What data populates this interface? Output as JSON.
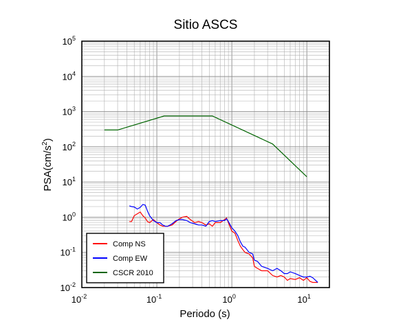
{
  "chart_data": {
    "type": "line",
    "title": "Sitio ASCS",
    "xlabel": "Periodo (s)",
    "ylabel_base": "PSA(cm/s",
    "ylabel_sup": "2",
    "ylabel_end": ")",
    "x_scale": "log",
    "y_scale": "log",
    "xlim": [
      0.01,
      20
    ],
    "ylim": [
      0.01,
      100000
    ],
    "grid": true,
    "legend_position": "bottom-left",
    "x_ticks": [
      {
        "base": "10",
        "exp": "-2",
        "value": 0.01
      },
      {
        "base": "10",
        "exp": "-1",
        "value": 0.1
      },
      {
        "base": "10",
        "exp": "0",
        "value": 1
      },
      {
        "base": "10",
        "exp": "1",
        "value": 10
      }
    ],
    "y_ticks": [
      {
        "base": "10",
        "exp": "-2",
        "value": 0.01
      },
      {
        "base": "10",
        "exp": "-1",
        "value": 0.1
      },
      {
        "base": "10",
        "exp": "0",
        "value": 1
      },
      {
        "base": "10",
        "exp": "1",
        "value": 10
      },
      {
        "base": "10",
        "exp": "2",
        "value": 100
      },
      {
        "base": "10",
        "exp": "3",
        "value": 1000
      },
      {
        "base": "10",
        "exp": "4",
        "value": 10000
      },
      {
        "base": "10",
        "exp": "5",
        "value": 100000
      }
    ],
    "series": [
      {
        "name": "Comp NS",
        "color": "#ff0000",
        "x": [
          0.043,
          0.046,
          0.05,
          0.055,
          0.06,
          0.065,
          0.07,
          0.075,
          0.08,
          0.09,
          0.1,
          0.11,
          0.12,
          0.13,
          0.14,
          0.16,
          0.18,
          0.2,
          0.22,
          0.25,
          0.28,
          0.32,
          0.36,
          0.4,
          0.45,
          0.5,
          0.55,
          0.6,
          0.7,
          0.8,
          0.85,
          0.9,
          1.0,
          1.1,
          1.2,
          1.3,
          1.4,
          1.5,
          1.7,
          1.9,
          2.0,
          2.2,
          2.5,
          3.0,
          3.5,
          4.0,
          4.5,
          5.0,
          5.5,
          6.0,
          7.0,
          8.0,
          9.0,
          10.0,
          11.0,
          12.0,
          14.0
        ],
        "y": [
          0.75,
          0.75,
          1.1,
          1.25,
          1.4,
          1.1,
          0.95,
          0.75,
          0.7,
          0.85,
          0.7,
          0.6,
          0.55,
          0.55,
          0.55,
          0.6,
          0.75,
          0.9,
          1.0,
          1.05,
          0.85,
          0.7,
          0.75,
          0.7,
          0.6,
          0.65,
          0.55,
          0.7,
          0.7,
          0.85,
          0.95,
          0.7,
          0.4,
          0.35,
          0.22,
          0.15,
          0.12,
          0.1,
          0.09,
          0.07,
          0.04,
          0.035,
          0.03,
          0.03,
          0.022,
          0.02,
          0.022,
          0.02,
          0.016,
          0.018,
          0.017,
          0.019,
          0.016,
          0.019,
          0.015,
          0.014,
          0.014
        ]
      },
      {
        "name": "Comp EW",
        "color": "#0000ff",
        "x": [
          0.043,
          0.046,
          0.05,
          0.055,
          0.06,
          0.065,
          0.07,
          0.075,
          0.08,
          0.09,
          0.1,
          0.11,
          0.12,
          0.13,
          0.14,
          0.16,
          0.18,
          0.2,
          0.22,
          0.25,
          0.28,
          0.32,
          0.36,
          0.4,
          0.45,
          0.5,
          0.55,
          0.6,
          0.7,
          0.8,
          0.85,
          0.9,
          1.0,
          1.1,
          1.2,
          1.3,
          1.4,
          1.5,
          1.7,
          1.9,
          2.0,
          2.2,
          2.5,
          3.0,
          3.5,
          4.0,
          4.5,
          5.0,
          5.5,
          6.0,
          7.0,
          8.0,
          9.0,
          10.0,
          11.0,
          12.0,
          14.0
        ],
        "y": [
          2.1,
          2.0,
          1.95,
          1.7,
          1.9,
          2.3,
          2.2,
          1.5,
          1.1,
          0.8,
          0.7,
          0.7,
          0.6,
          0.55,
          0.55,
          0.65,
          0.8,
          0.85,
          0.85,
          0.8,
          0.7,
          0.65,
          0.6,
          0.6,
          0.55,
          0.75,
          0.8,
          0.75,
          0.8,
          0.8,
          0.9,
          0.75,
          0.5,
          0.4,
          0.3,
          0.2,
          0.15,
          0.14,
          0.1,
          0.09,
          0.06,
          0.055,
          0.04,
          0.035,
          0.03,
          0.035,
          0.03,
          0.025,
          0.025,
          0.028,
          0.025,
          0.022,
          0.02,
          0.02,
          0.021,
          0.019,
          0.014
        ]
      },
      {
        "name": "CSCR 2010",
        "color": "#006400",
        "x": [
          0.02,
          0.03,
          0.125,
          0.55,
          3.5,
          10.0
        ],
        "y": [
          300,
          300,
          750,
          750,
          120,
          14
        ]
      }
    ]
  }
}
